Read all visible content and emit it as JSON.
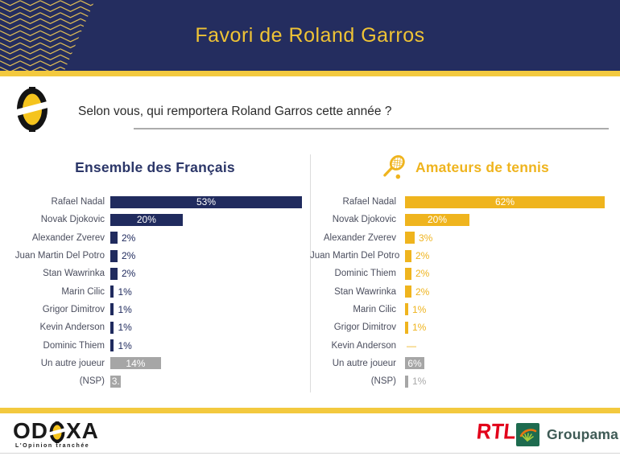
{
  "header": {
    "title": "Favori de Roland Garros"
  },
  "question": {
    "text": "Selon vous, qui remportera Roland Garros cette année ?"
  },
  "chart_data": [
    {
      "type": "bar",
      "orientation": "horizontal",
      "title": "Ensemble des Français",
      "unit": "%",
      "xlim": [
        0,
        53
      ],
      "categories": [
        "Rafael Nadal",
        "Novak Djokovic",
        "Alexander Zverev",
        "Juan Martin Del Potro",
        "Stan Wawrinka",
        "Marin Cilic",
        "Grigor Dimitrov",
        "Kevin Anderson",
        "Dominic Thiem",
        "Un autre joueur",
        "(NSP)"
      ],
      "values": [
        53,
        20,
        2,
        2,
        2,
        1,
        1,
        1,
        1,
        14,
        3
      ],
      "labels": [
        "53%",
        "20%",
        "2%",
        "2%",
        "2%",
        "1%",
        "1%",
        "1%",
        "1%",
        "14%",
        "3."
      ],
      "bar_kinds": [
        "primary",
        "primary",
        "primary",
        "primary",
        "primary",
        "primary",
        "primary",
        "primary",
        "primary",
        "neutral",
        "neutral"
      ],
      "label_modes": [
        "inside",
        "inside",
        "outside",
        "outside",
        "outside",
        "outside",
        "outside",
        "outside",
        "outside",
        "inside",
        "inside"
      ],
      "primary_color": "#202B5E",
      "neutral_color": "#A6A6A6",
      "muted_label_color": "#A9A9A9"
    },
    {
      "type": "bar",
      "orientation": "horizontal",
      "title": "Amateurs de tennis",
      "icon": "tennis-racket-icon",
      "unit": "%",
      "xlim": [
        0,
        62
      ],
      "categories": [
        "Rafael Nadal",
        "Novak Djokovic",
        "Alexander Zverev",
        "Juan Martin Del Potro",
        "Dominic Thiem",
        "Stan Wawrinka",
        "Marin Cilic",
        "Grigor Dimitrov",
        "Kevin Anderson",
        "Un autre joueur",
        "(NSP)"
      ],
      "values": [
        62,
        20,
        3,
        2,
        2,
        2,
        1,
        1,
        0,
        6,
        1
      ],
      "labels": [
        "62%",
        "20%",
        "3%",
        "2%",
        "2%",
        "2%",
        "1%",
        "1%",
        "—",
        "6%",
        "1%"
      ],
      "bar_kinds": [
        "primary",
        "primary",
        "primary",
        "primary",
        "primary",
        "primary",
        "primary",
        "primary",
        "none",
        "neutral",
        "neutral"
      ],
      "label_modes": [
        "inside",
        "inside",
        "outside",
        "outside",
        "outside",
        "outside",
        "outside",
        "outside",
        "dash",
        "inside",
        "outside-muted"
      ],
      "primary_color": "#EFB41E",
      "neutral_color": "#A6A6A6",
      "muted_label_color": "#A9A9A9"
    }
  ],
  "footer": {
    "odoxa_left": "OD",
    "odoxa_right": "XA",
    "odoxa_tagline": "L'Opinion tranchée",
    "rtl_label": "RTL",
    "groupama_label": "Groupama"
  },
  "colors": {
    "header_bg": "#242D5F",
    "gold_stripe": "#F3C93F",
    "header_title": "#EFC335",
    "navy_bar": "#202B5E",
    "gold_bar": "#EFB41E",
    "neutral_bar": "#A6A6A6",
    "category_label": "#4B4E5E",
    "rtl_red": "#E2001A",
    "groupama_green": "#1E6B4F"
  }
}
